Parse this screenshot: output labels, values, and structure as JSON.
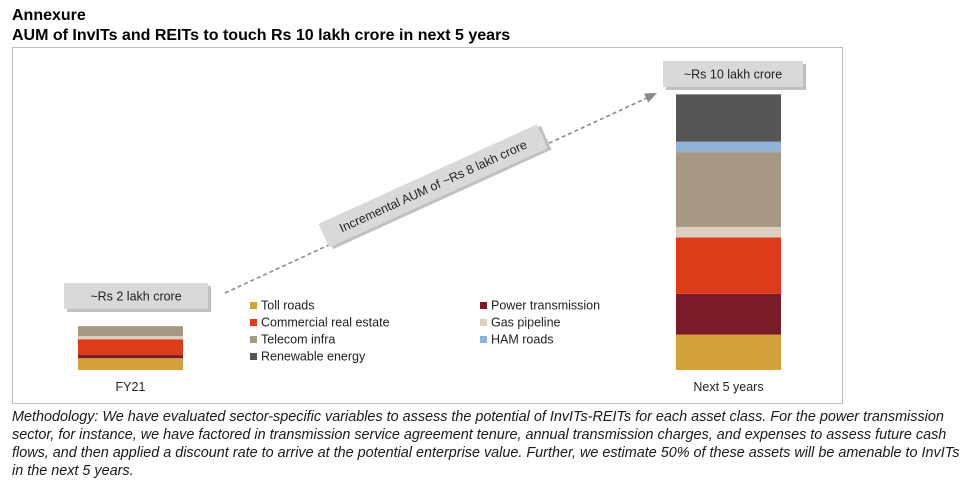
{
  "header": {
    "section": "Annexure",
    "title": "AUM of InvITs and REITs to touch Rs 10 lakh crore in next 5 years"
  },
  "methodology": "Methodology: We have evaluated sector-specific variables to assess the potential of InvITs-REITs for each asset class. For the power transmission sector, for instance, we have factored in transmission service agreement tenure, annual transmission charges, and expenses to assess future cash flows, and then applied a discount rate to arrive at the potential enterprise value. Further, we estimate 50% of these assets will be amenable to InvITs in the next 5 years.",
  "chart_data": {
    "type": "bar",
    "stacked": true,
    "categories": [
      "FY21",
      "Next 5 years"
    ],
    "ylim": [
      0,
      10.4
    ],
    "unit": "Rs lakh crore",
    "series": [
      {
        "name": "Toll roads",
        "color": "#D4A23A",
        "values": [
          0.45,
          1.35
        ]
      },
      {
        "name": "Power transmission",
        "color": "#7B1B2A",
        "values": [
          0.12,
          1.55
        ]
      },
      {
        "name": "Commercial real estate",
        "color": "#DD3B1A",
        "values": [
          0.6,
          2.15
        ]
      },
      {
        "name": "Gas pipeline",
        "color": "#DCCFC1",
        "values": [
          0.12,
          0.4
        ]
      },
      {
        "name": "Telecom infra",
        "color": "#A79883",
        "values": [
          0.38,
          2.85
        ]
      },
      {
        "name": "HAM roads",
        "color": "#8FB3D9",
        "values": [
          0.0,
          0.4
        ]
      },
      {
        "name": "Renewable energy",
        "color": "#555555",
        "values": [
          0.0,
          1.8
        ]
      }
    ],
    "legend": {
      "position": "center",
      "columns": 2
    },
    "annotations": [
      {
        "text": "~Rs 2 lakh crore",
        "target": "FY21"
      },
      {
        "text": "~Rs 10 lakh crore",
        "target": "Next 5 years"
      },
      {
        "text": "Incremental AUM of ~Rs 8 lakh crore",
        "kind": "arrow-label"
      }
    ]
  }
}
